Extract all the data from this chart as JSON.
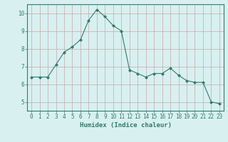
{
  "x": [
    0,
    1,
    2,
    3,
    4,
    5,
    6,
    7,
    8,
    9,
    10,
    11,
    12,
    13,
    14,
    15,
    16,
    17,
    18,
    19,
    20,
    21,
    22,
    23
  ],
  "y": [
    6.4,
    6.4,
    6.4,
    7.1,
    7.8,
    8.1,
    8.5,
    9.6,
    10.2,
    9.8,
    9.3,
    9.0,
    6.8,
    6.6,
    6.4,
    6.6,
    6.6,
    6.9,
    6.5,
    6.2,
    6.1,
    6.1,
    5.0,
    4.9
  ],
  "xlabel": "Humidex (Indice chaleur)",
  "ylim": [
    4.5,
    10.5
  ],
  "xlim": [
    -0.5,
    23.5
  ],
  "yticks": [
    5,
    6,
    7,
    8,
    9,
    10
  ],
  "xticks": [
    0,
    1,
    2,
    3,
    4,
    5,
    6,
    7,
    8,
    9,
    10,
    11,
    12,
    13,
    14,
    15,
    16,
    17,
    18,
    19,
    20,
    21,
    22,
    23
  ],
  "line_color": "#2e7d6e",
  "marker": "D",
  "marker_size": 2.0,
  "bg_color": "#d8f0f0",
  "grid_color": "#c8a8a8",
  "axis_color": "#2e7d6e",
  "tick_color": "#2e7d6e",
  "label_color": "#2e7d6e",
  "xlabel_fontsize": 6.5,
  "tick_fontsize": 5.5
}
